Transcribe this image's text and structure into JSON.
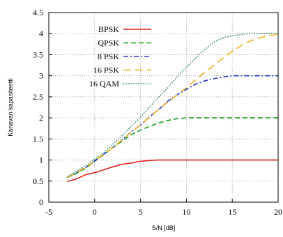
{
  "chart_data": {
    "type": "line",
    "title": "",
    "xlabel": "S/N [dB]",
    "ylabel": "Kanavan kapasiteetti",
    "xlim": [
      -5,
      20
    ],
    "ylim": [
      0,
      4.5
    ],
    "xticks": [
      -5,
      0,
      5,
      10,
      15,
      20
    ],
    "yticks": [
      0,
      0.5,
      1,
      1.5,
      2,
      2.5,
      3,
      3.5,
      4,
      4.5
    ],
    "xtick_labels": [
      "-5",
      "0",
      "5",
      "10",
      "15",
      "20"
    ],
    "ytick_labels": [
      "0",
      "0.5",
      "1",
      "1.5",
      "2",
      "2.5",
      "3",
      "3.5",
      "4",
      "4.5"
    ],
    "grid": true,
    "legend_position": "top-left",
    "series": [
      {
        "name": "BPSK",
        "color": "#e02020",
        "dash": "solid",
        "x": [
          -3,
          -2,
          -1,
          0,
          1,
          2,
          3,
          4,
          5,
          6,
          7,
          8,
          10,
          12,
          15,
          20
        ],
        "y": [
          0.49,
          0.55,
          0.65,
          0.7,
          0.77,
          0.84,
          0.9,
          0.93,
          0.97,
          0.99,
          1.0,
          1.0,
          1.0,
          1.0,
          1.0,
          1.0
        ]
      },
      {
        "name": "QPSK",
        "color": "#1a9a1a",
        "dash": "dashed",
        "x": [
          -3,
          -2,
          -1,
          0,
          1,
          2,
          3,
          4,
          5,
          6,
          7,
          8,
          9,
          10,
          12,
          15,
          20
        ],
        "y": [
          0.58,
          0.68,
          0.8,
          0.97,
          1.13,
          1.3,
          1.45,
          1.6,
          1.71,
          1.8,
          1.88,
          1.94,
          1.98,
          2.0,
          2.0,
          2.0,
          2.0
        ]
      },
      {
        "name": "8 PSK",
        "color": "#2233cc",
        "dash": "dashdot",
        "x": [
          -3,
          -2,
          -1,
          0,
          1,
          2,
          3,
          4,
          5,
          6,
          7,
          8,
          9,
          10,
          11,
          12,
          13,
          14,
          15,
          16,
          17,
          18,
          20
        ],
        "y": [
          0.58,
          0.7,
          0.82,
          0.98,
          1.14,
          1.3,
          1.48,
          1.67,
          1.83,
          2.03,
          2.2,
          2.4,
          2.55,
          2.68,
          2.8,
          2.88,
          2.93,
          2.97,
          3.0,
          3.0,
          3.0,
          3.0,
          3.0
        ]
      },
      {
        "name": "16 PSK",
        "color": "#f0b020",
        "dash": "longdash",
        "x": [
          -3,
          -2,
          -1,
          0,
          1,
          2,
          3,
          4,
          5,
          6,
          7,
          8,
          9,
          10,
          11,
          12,
          13,
          14,
          15,
          16,
          17,
          18,
          19,
          20
        ],
        "y": [
          0.58,
          0.7,
          0.82,
          0.98,
          1.14,
          1.3,
          1.48,
          1.66,
          1.84,
          2.02,
          2.2,
          2.38,
          2.55,
          2.72,
          2.9,
          3.08,
          3.25,
          3.42,
          3.58,
          3.72,
          3.83,
          3.9,
          3.95,
          3.98
        ]
      },
      {
        "name": "16 QAM",
        "color": "#2a8a5a",
        "dash": "dotted",
        "x": [
          -3,
          -2,
          -1,
          0,
          1,
          2,
          3,
          4,
          5,
          6,
          7,
          8,
          9,
          10,
          11,
          12,
          13,
          14,
          15,
          16,
          17,
          18,
          19,
          20
        ],
        "y": [
          0.6,
          0.73,
          0.86,
          1.02,
          1.18,
          1.38,
          1.58,
          1.8,
          2.02,
          2.26,
          2.5,
          2.73,
          2.97,
          3.2,
          3.42,
          3.62,
          3.8,
          3.9,
          3.95,
          3.98,
          4.0,
          4.0,
          4.0,
          4.0
        ]
      }
    ]
  }
}
